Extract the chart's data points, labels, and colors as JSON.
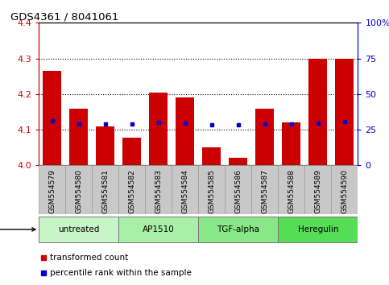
{
  "title": "GDS4361 / 8041061",
  "samples": [
    "GSM554579",
    "GSM554580",
    "GSM554581",
    "GSM554582",
    "GSM554583",
    "GSM554584",
    "GSM554585",
    "GSM554586",
    "GSM554587",
    "GSM554588",
    "GSM554589",
    "GSM554590"
  ],
  "red_values": [
    4.265,
    4.16,
    4.11,
    4.078,
    4.205,
    4.19,
    4.05,
    4.02,
    4.16,
    4.12,
    4.3,
    4.3
  ],
  "blue_values": [
    4.125,
    4.115,
    4.115,
    4.115,
    4.12,
    4.118,
    4.113,
    4.113,
    4.115,
    4.115,
    4.118,
    4.122
  ],
  "ylim": [
    4.0,
    4.4
  ],
  "y_ticks_left": [
    4.0,
    4.1,
    4.2,
    4.3,
    4.4
  ],
  "y_ticks_right": [
    0,
    25,
    50,
    75,
    100
  ],
  "groups": [
    {
      "label": "untreated",
      "start": 0,
      "end": 3,
      "color": "#c8f5c8"
    },
    {
      "label": "AP1510",
      "start": 3,
      "end": 6,
      "color": "#a8efa8"
    },
    {
      "label": "TGF-alpha",
      "start": 6,
      "end": 9,
      "color": "#88e888"
    },
    {
      "label": "Heregulin",
      "start": 9,
      "end": 12,
      "color": "#55dd55"
    }
  ],
  "bar_color": "#cc0000",
  "dot_color": "#0000cc",
  "background_plot": "#ffffff",
  "tick_bg_color": "#c8c8c8",
  "left_axis_color": "#cc0000",
  "right_axis_color": "#0000cc",
  "grid_dotted_color": "#000000"
}
